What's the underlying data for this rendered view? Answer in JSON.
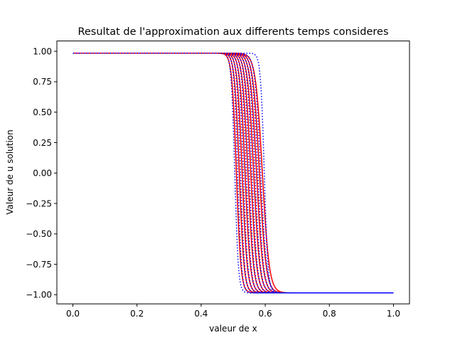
{
  "chart_data": {
    "type": "line",
    "title": "Resultat de l'approximation aux differents temps consideres",
    "xlabel": "valeur de x",
    "ylabel": "Valeur de u solution",
    "xlim": [
      -0.05,
      1.05
    ],
    "ylim": [
      -1.075,
      1.085
    ],
    "xticks": [
      0.0,
      0.2,
      0.4,
      0.6,
      0.8,
      1.0
    ],
    "xtick_labels": [
      "0.0",
      "0.2",
      "0.4",
      "0.6",
      "0.8",
      "1.0"
    ],
    "yticks": [
      -1.0,
      -0.75,
      -0.5,
      -0.25,
      0.0,
      0.25,
      0.5,
      0.75,
      1.0
    ],
    "ytick_labels": [
      "−1.00",
      "−0.75",
      "−0.50",
      "−0.25",
      "0.00",
      "0.25",
      "0.50",
      "0.75",
      "1.00"
    ],
    "grid": false,
    "amplitude": 0.985,
    "series": [
      {
        "style": "solid",
        "color": "#ff0000",
        "center": 0.51,
        "width": 0.014
      },
      {
        "style": "solid",
        "color": "#ff0000",
        "center": 0.519,
        "width": 0.0148
      },
      {
        "style": "solid",
        "color": "#ff0000",
        "center": 0.528,
        "width": 0.0156
      },
      {
        "style": "solid",
        "color": "#ff0000",
        "center": 0.537,
        "width": 0.0164
      },
      {
        "style": "solid",
        "color": "#ff0000",
        "center": 0.546,
        "width": 0.0172
      },
      {
        "style": "solid",
        "color": "#ff0000",
        "center": 0.555,
        "width": 0.018
      },
      {
        "style": "solid",
        "color": "#ff0000",
        "center": 0.564,
        "width": 0.0188
      },
      {
        "style": "solid",
        "color": "#ff0000",
        "center": 0.573,
        "width": 0.0196
      },
      {
        "style": "solid",
        "color": "#ff0000",
        "center": 0.582,
        "width": 0.0204
      },
      {
        "style": "solid",
        "color": "#ff0000",
        "center": 0.591,
        "width": 0.0212
      },
      {
        "style": "dotted",
        "color": "#0000ff",
        "center": 0.505,
        "width": 0.011
      },
      {
        "style": "dotted",
        "color": "#0000ff",
        "center": 0.514,
        "width": 0.0118
      },
      {
        "style": "dotted",
        "color": "#0000ff",
        "center": 0.523,
        "width": 0.0126
      },
      {
        "style": "dotted",
        "color": "#0000ff",
        "center": 0.532,
        "width": 0.0134
      },
      {
        "style": "dotted",
        "color": "#0000ff",
        "center": 0.541,
        "width": 0.0142
      },
      {
        "style": "dotted",
        "color": "#0000ff",
        "center": 0.55,
        "width": 0.015
      },
      {
        "style": "dotted",
        "color": "#0000ff",
        "center": 0.559,
        "width": 0.0158
      },
      {
        "style": "dotted",
        "color": "#0000ff",
        "center": 0.568,
        "width": 0.0166
      },
      {
        "style": "dotted",
        "color": "#0000ff",
        "center": 0.577,
        "width": 0.0174
      },
      {
        "style": "dotted",
        "color": "#0000ff",
        "center": 0.586,
        "width": 0.0182
      },
      {
        "style": "dotted",
        "color": "#0000ff",
        "center": 0.597,
        "width": 0.0115
      }
    ]
  }
}
